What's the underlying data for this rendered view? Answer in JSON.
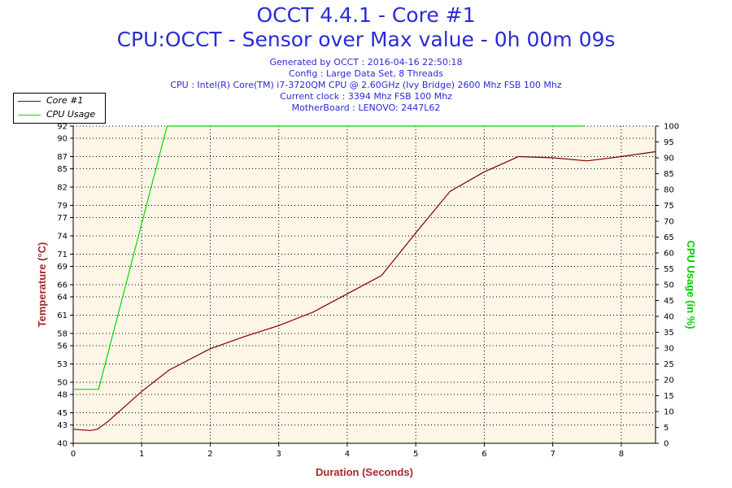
{
  "header": {
    "title": "OCCT 4.4.1 - Core #1",
    "subtitle": "CPU:OCCT - Sensor over Max value - 0h 00m 09s",
    "lines": [
      "Generated by OCCT : 2016-04-16 22:50:18",
      "Config : Large Data Set, 8 Threads",
      "CPU : Intel(R) Core(TM) i7-3720QM CPU @ 2.60GHz (Ivy Bridge) 2600 Mhz FSB 100 Mhz",
      "Current clock : 3394 Mhz FSB 100 Mhz",
      "MotherBoard : LENOVO: 2447L62"
    ]
  },
  "legend": {
    "items": [
      {
        "label": "Core #1",
        "color": "#800000"
      },
      {
        "label": "CPU Usage",
        "color": "#00dd00"
      }
    ]
  },
  "colors": {
    "plot_background": "#fdf5e6",
    "temperature": "#800000",
    "cpu_usage": "#00dd00",
    "title_blue": "#2a2ad8",
    "axis_label_left": "#a52a2a",
    "axis_label_right": "#00cc00"
  },
  "chart_data": {
    "type": "line",
    "xlabel": "Duration (Seconds)",
    "ylabel": "Temperature (°C)",
    "ylabel_right": "CPU Usage (in %)",
    "xlim": [
      0,
      8.5
    ],
    "ylim": [
      40,
      92
    ],
    "ylim_right": [
      0,
      100
    ],
    "x_ticks": [
      "0",
      "1",
      "2",
      "3",
      "4",
      "5",
      "6",
      "7",
      "8"
    ],
    "y_ticks": [
      40,
      43,
      45,
      48,
      50,
      53,
      56,
      58,
      61,
      64,
      66,
      69,
      71,
      74,
      77,
      79,
      82,
      85,
      87,
      90,
      92
    ],
    "y_ticks_right": [
      0,
      5,
      10,
      15,
      20,
      25,
      30,
      35,
      40,
      45,
      50,
      55,
      60,
      65,
      70,
      75,
      80,
      85,
      90,
      95,
      100
    ],
    "grid": true,
    "legend_position": "top-left",
    "series": [
      {
        "name": "Core #1",
        "axis": "left",
        "x": [
          0,
          0.25,
          0.35,
          0.5,
          1.0,
          1.4,
          2.0,
          2.5,
          3.0,
          3.5,
          4.0,
          4.5,
          5.0,
          5.5,
          6.0,
          6.5,
          7.0,
          7.5,
          8.0,
          8.5
        ],
        "y": [
          42.3,
          42.1,
          42.3,
          43.5,
          48.5,
          52.0,
          55.5,
          57.5,
          59.3,
          61.5,
          64.5,
          67.5,
          74.5,
          81.3,
          84.5,
          87.0,
          86.8,
          86.3,
          87.0,
          87.8
        ]
      },
      {
        "name": "CPU Usage",
        "axis": "right",
        "x": [
          0,
          0.37,
          1.37,
          7.45
        ],
        "y": [
          17,
          17,
          100,
          100
        ]
      }
    ]
  }
}
